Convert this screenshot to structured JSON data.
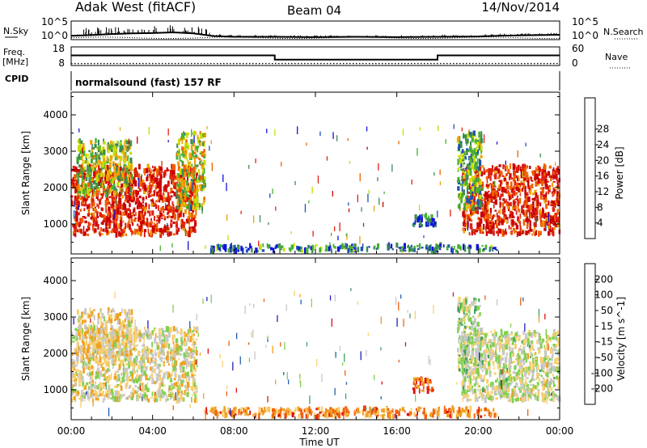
{
  "header": {
    "station": "Adak West (fitACF)",
    "beam": "Beam 04",
    "date": "14/Nov/2014"
  },
  "cpid": {
    "label": "CPID",
    "text": "normalsound (fast) 157 RF"
  },
  "xaxis": {
    "label": "Time UT",
    "ticks": [
      "00:00",
      "04:00",
      "08:00",
      "12:00",
      "16:00",
      "20:00",
      "00:00"
    ]
  },
  "chart_data": [
    {
      "id": "noise",
      "type": "line",
      "left_label": "N.Sky",
      "right_label": "N.Search",
      "left_ticks": [
        "10^5",
        "10^0"
      ],
      "right_ticks": [
        "10^5",
        "10^0"
      ],
      "x_hours": [
        0,
        1,
        2,
        3,
        4,
        5,
        6,
        7,
        8,
        10,
        12,
        14,
        16,
        18,
        20,
        21,
        22,
        23,
        24
      ],
      "sky_log10": [
        0.9,
        1.1,
        1.4,
        1.6,
        1.7,
        1.9,
        1.6,
        0.8,
        0.6,
        0.6,
        0.5,
        0.6,
        0.5,
        0.6,
        0.7,
        0.9,
        1.0,
        1.1,
        1.2
      ],
      "ylim": [
        0,
        5
      ]
    },
    {
      "id": "freq",
      "type": "line",
      "left_label": "Freq.",
      "left_unit": "[MHz]",
      "right_label": "Nave",
      "left_ticks": [
        "18",
        "8"
      ],
      "right_ticks": [
        "60",
        "0"
      ],
      "freq_segments_mhz": [
        {
          "from": 0,
          "to": 10,
          "value": 13.5
        },
        {
          "from": 10,
          "to": 18,
          "value": 11.0
        },
        {
          "from": 18,
          "to": 24,
          "value": 13.5
        }
      ],
      "nave": 4,
      "ylim": [
        8,
        18
      ]
    },
    {
      "id": "power",
      "type": "heatmap",
      "ylabel": "Slant Range [km]",
      "yticks": [
        "1000",
        "2000",
        "3000",
        "4000"
      ],
      "ylim": [
        200,
        4600
      ],
      "xlim_hours": [
        0,
        24
      ],
      "colorbar_label": "Power [dB]",
      "colorbar_ticks": [
        "4",
        "8",
        "12",
        "16",
        "20",
        "24",
        "28"
      ],
      "colors": [
        "#1010e0",
        "#1e50b4",
        "#3c8c50",
        "#48b030",
        "#c8dc00",
        "#f0a000",
        "#f06000",
        "#e02010",
        "#c80000"
      ],
      "regions": [
        {
          "t0": 0.0,
          "t1": 6.2,
          "r0": 700,
          "r1": 2600,
          "level": 0.85
        },
        {
          "t0": 0.3,
          "t1": 3.0,
          "r0": 1800,
          "r1": 3300,
          "level": 0.45
        },
        {
          "t0": 5.2,
          "t1": 6.6,
          "r0": 1400,
          "r1": 3500,
          "level": 0.5
        },
        {
          "t0": 19.2,
          "t1": 24.0,
          "r0": 700,
          "r1": 2600,
          "level": 0.85
        },
        {
          "t0": 19.0,
          "t1": 20.2,
          "r0": 1400,
          "r1": 3500,
          "level": 0.35
        },
        {
          "t0": 16.8,
          "t1": 17.9,
          "r0": 950,
          "r1": 1250,
          "level": 0.2
        },
        {
          "t0": 6.5,
          "t1": 21.0,
          "r0": 250,
          "r1": 420,
          "level": 0.25
        }
      ]
    },
    {
      "id": "velocity",
      "type": "heatmap",
      "ylabel": "Slant Range [km]",
      "yticks": [
        "1000",
        "2000",
        "3000",
        "4000"
      ],
      "ylim": [
        200,
        4600
      ],
      "xlim_hours": [
        0,
        24
      ],
      "colorbar_label": "Velocity [m s^-1]",
      "colorbar_ticks": [
        "-200",
        "-100",
        "-50",
        "-15",
        "15",
        "50",
        "100",
        "200"
      ],
      "colors": [
        "#e01010",
        "#f06010",
        "#f0a020",
        "#f8d070",
        "#c8c8c8",
        "#80d050",
        "#40a060",
        "#2060b0",
        "#2020c0"
      ],
      "regions": [
        {
          "t0": 0.0,
          "t1": 6.2,
          "r0": 700,
          "r1": 2700,
          "level": 0.45
        },
        {
          "t0": 0.3,
          "t1": 3.0,
          "r0": 1800,
          "r1": 3200,
          "level": 0.4
        },
        {
          "t0": 19.2,
          "t1": 24.0,
          "r0": 700,
          "r1": 2600,
          "level": 0.5
        },
        {
          "t0": 19.0,
          "t1": 20.2,
          "r0": 1400,
          "r1": 3500,
          "level": 0.55
        },
        {
          "t0": 16.8,
          "t1": 17.8,
          "r0": 950,
          "r1": 1300,
          "level": 0.15
        },
        {
          "t0": 6.5,
          "t1": 21.0,
          "r0": 250,
          "r1": 500,
          "level": 0.25
        }
      ]
    }
  ]
}
